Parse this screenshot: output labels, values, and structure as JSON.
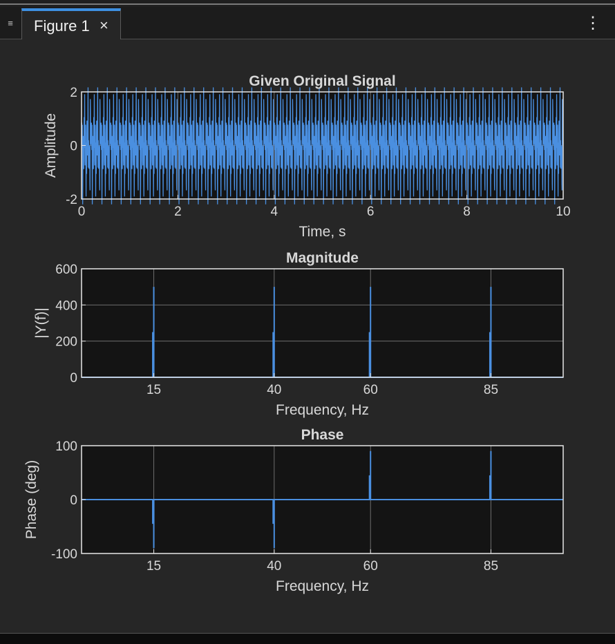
{
  "tab": {
    "label": "Figure 1",
    "close_glyph": "×",
    "menu_glyph": "≡",
    "options_glyph": "⋮"
  },
  "icons": {
    "menu": "hamburger-menu-icon",
    "close": "close-icon",
    "options": "vertical-ellipsis-icon"
  },
  "colors": {
    "accent": "#3d8fe0",
    "series": "#4a8fe0",
    "axes_bg": "#141414",
    "grid": "#6e6e6e"
  },
  "chart_data": [
    {
      "type": "line",
      "title": "Given Original Signal",
      "xlabel": "Time, s",
      "ylabel": "Amplitude",
      "xlim": [
        0,
        10
      ],
      "ylim": [
        -2,
        2
      ],
      "xticks": [
        0,
        2,
        4,
        6,
        8,
        10
      ],
      "yticks": [
        -2,
        0,
        2
      ],
      "grid": true,
      "series": [
        {
          "components": [
            {
              "freq_hz": 15,
              "amplitude": 0.5
            },
            {
              "freq_hz": 40,
              "amplitude": 0.5
            },
            {
              "freq_hz": 60,
              "amplitude": 0.5
            },
            {
              "freq_hz": 85,
              "amplitude": 0.5
            }
          ]
        }
      ]
    },
    {
      "type": "bar",
      "title": "Magnitude",
      "xlabel": "Frequency, Hz",
      "ylabel": "|Y(f)|",
      "xlim": [
        0,
        100
      ],
      "ylim": [
        0,
        600
      ],
      "xticks": [
        15,
        40,
        60,
        85
      ],
      "yticks": [
        0,
        200,
        400,
        600
      ],
      "grid": true,
      "x": [
        15,
        40,
        60,
        85
      ],
      "values": [
        500,
        500,
        500,
        500
      ]
    },
    {
      "type": "bar",
      "title": "Phase",
      "xlabel": "Frequency, Hz",
      "ylabel": "Phase (deg)",
      "xlim": [
        0,
        100
      ],
      "ylim": [
        -100,
        100
      ],
      "xticks": [
        15,
        40,
        60,
        85
      ],
      "yticks": [
        -100,
        0,
        100
      ],
      "grid": true,
      "x": [
        15,
        40,
        60,
        85
      ],
      "values": [
        -90,
        -90,
        90,
        90
      ]
    }
  ]
}
